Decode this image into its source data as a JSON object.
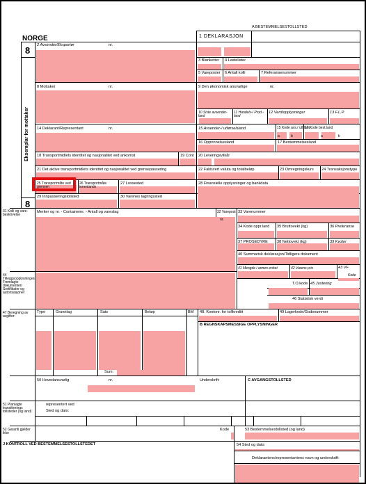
{
  "header": {
    "country": "NORGE",
    "copy_number": "8",
    "copy_number_bottom": "8",
    "side_label": "Eksemplar for mottaker",
    "box_a_label": "A BESTEMMELSESTOLLSTED",
    "declaration_box": "1 DEKLARASJON"
  },
  "fields": {
    "f2": "2 Avsender/Eksportør",
    "f2_nr": "nr.",
    "f3": "3 Blanketter",
    "f4": "4 Lastelister",
    "f5": "5 Vareposter",
    "f6": "6 Antall kolli",
    "f7": "7 Referansenummer",
    "f8": "8 Mottaker",
    "f8_nr": "nr.",
    "f9": "9 Den økonomisk ansvarlige",
    "f9_nr": "nr.",
    "f10": "10 Siste avsender-land",
    "f11": "11 Handels-/ Prod.-land",
    "f12": "12 Verdiopplysninger",
    "f13": "13 F.L.P",
    "f14": "14 Deklarant/Representant",
    "f14_nr": "nr.",
    "f15": "15 Avsender-/ utførselsland",
    "f15a": "15 Kode avs./ utf.land",
    "f17a": "17 Kode best.land",
    "f16": "16 Opprinnelsesland",
    "f17": "17 Bestemmelsesland",
    "sub_a": "a",
    "sub_b": "b",
    "f18": "18 Transportmidlets identitet og nasjonalitet ved ankomst",
    "f19": "19 Cont",
    "f20": "20 Leveringsvilkår",
    "f21": "21 Det aktive transportmidlets identitet og nasjonalitet ved grensepassering",
    "f22": "22 Fakturert valuta og totalbeløp",
    "f23": "23 Omregningskurs",
    "f24": "24 Transaksjonstype",
    "f25": "25 Transportmåte ved grensen",
    "f26": "26 Transportmåte innenlands",
    "f27": "27 Lossested",
    "f28": "28 Finansielle opplysninger og bankdata",
    "f29": "29 Innpasseringstollsted",
    "f30": "30 Varenes lagringssted",
    "f31": "31 Kolli og vare-beskrivelse",
    "f31_desc": "Merker og nr. - Containernr. - Antall og vareslag",
    "f32": "32 Varepost",
    "f32_nr": "nr.",
    "f33": "33 Varenummer",
    "f34": "34 Kode oppr.land",
    "f35": "35 Bruttovekt (kg)",
    "f36": "36 Preferanse",
    "f37": "37 PROSEDYRE",
    "f38": "38 Nettovekt (kg)",
    "f39": "39 Kvoter",
    "f40": "40 Summarisk deklarasjon/Tidligere dokument",
    "f41": "41 Mengde i annen enhet",
    "f42": "42 Varens pris",
    "f43": "43 VF",
    "f43_kode": "Kode",
    "f44": "44 Tilleggsopplysninger/ Fremlagte dokumenter/ Sertifikater og autorisasjoner",
    "tokode": "T.O.kode",
    "f45": "45 Justering",
    "f46": "46 Statistisk verdi",
    "f47": "47 Beregning av avgifter:",
    "f47_type": "Type",
    "f47_grunnlag": "Grunnlag",
    "f47_sats": "Sats",
    "f47_belop": "Beløp",
    "f47_bm": "BM",
    "f47_sum": "Sum:",
    "f48": "48. Kontonr. for tollkreditt",
    "f49": "49 Lagerkode/Godsnummer",
    "fB": "B REGNSKAPSMESSIGE OPPLYSNINGER",
    "f50": "50 Hovedansvarlig",
    "f50_nr": "nr.",
    "f50_sign": "Underskrift:",
    "fC": "C AVGANGSTOLLSTED",
    "f51": "51 Planlagte transitterings tollsteder (og land)",
    "rep": "representert ved",
    "place_date": "Sted og dato:",
    "f52": "52 Garanti gjelder ikke",
    "f52_kode": "Kode",
    "f53": "53 Bestemmelsestollsted (og land)",
    "fJ": "J  KONTROLL VED BESTEMMELSESTOLLSTEDET",
    "f54": "54 Sted og dato:",
    "f54_sign": "Deklarantens/representantens navn og underskrift:"
  },
  "colors": {
    "fill": "#f7a3a3",
    "highlight": "#e01010"
  }
}
